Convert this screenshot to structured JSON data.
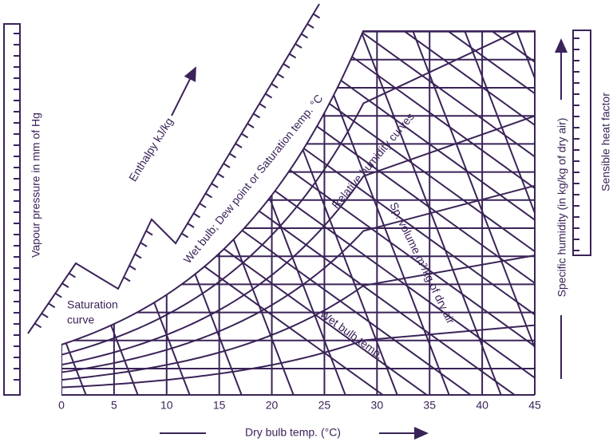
{
  "x_axis": {
    "ticks": [
      0,
      5,
      10,
      15,
      20,
      25,
      30,
      35,
      40,
      45
    ],
    "label": "Dry bulb temp. (°C)"
  },
  "labels": {
    "vapour_pressure": "Vapour pressure in mm of Hg",
    "enthalpy": "Enthalpy kJ/kg",
    "saturation_temp": "Wet bulb; Dew point or Saturation temp. °C",
    "relative_humidity": "Relative humidity curves",
    "sp_volume": "Sp. volume m³/kg of dry air",
    "saturation_curve": [
      "Saturation",
      "curve"
    ],
    "wet_bulb": "Wet bulb temp.",
    "specific_humidity": "Specific humidity (in kg/kg of dry air)",
    "sensible_heat": "Sensible heat factor"
  }
}
